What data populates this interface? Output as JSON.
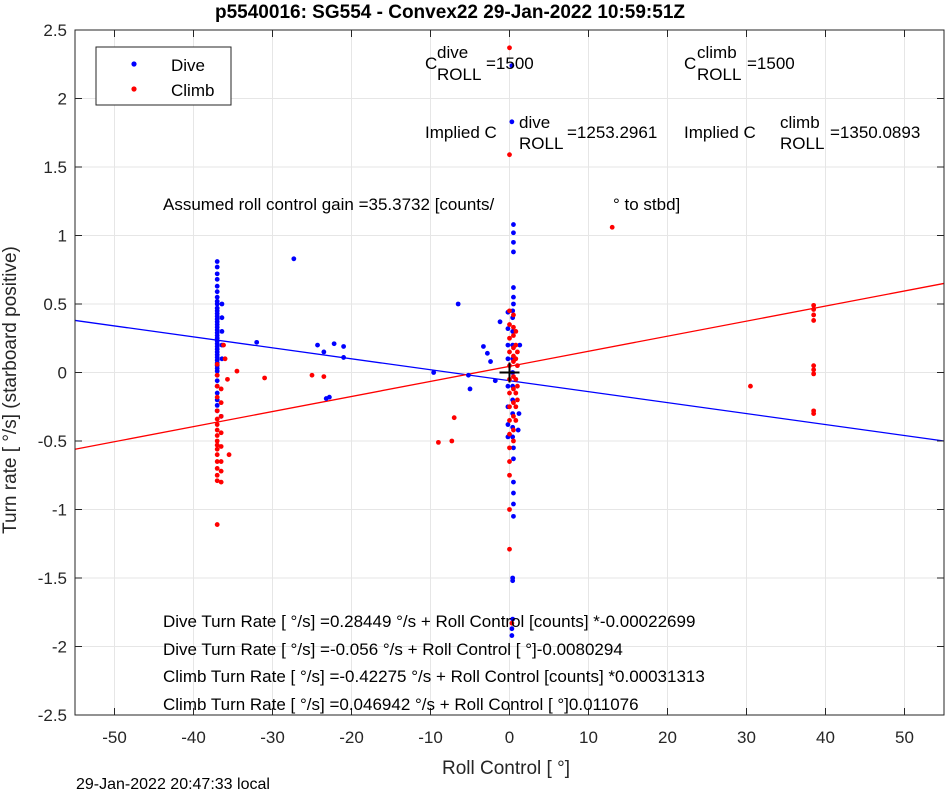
{
  "chart_data": {
    "type": "scatter",
    "title": "p5540016: SG554 - Convex22 29-Jan-2022 10:59:51Z",
    "xlabel": "Roll Control [   °]",
    "ylabel": "Turn rate [   °/s] (starboard positive)",
    "xlim": [
      -55,
      55
    ],
    "ylim": [
      -2.5,
      2.5
    ],
    "x_ticks": [
      -50,
      -40,
      -30,
      -20,
      -10,
      0,
      10,
      20,
      30,
      40,
      50
    ],
    "y_ticks": [
      -2.5,
      -2,
      -1.5,
      -1,
      -0.5,
      0,
      0.5,
      1,
      1.5,
      2,
      2.5
    ],
    "x_tick_labels": [
      "-50",
      "-40",
      "-30",
      "-20",
      "-10",
      "0",
      "10",
      "20",
      "30",
      "40",
      "50"
    ],
    "y_tick_labels": [
      "-2.5",
      "-2",
      "-1.5",
      "-1",
      "-0.5",
      "0",
      "0.5",
      "1",
      "1.5",
      "2",
      "2.5"
    ],
    "grid": true,
    "legend_position": "top-left",
    "series": [
      {
        "name": "Dive",
        "color": "#0000ff",
        "points": [
          [
            -37,
            0.81
          ],
          [
            -37,
            0.77
          ],
          [
            -37,
            0.72
          ],
          [
            -37,
            0.68
          ],
          [
            -37,
            0.63
          ],
          [
            -37,
            0.59
          ],
          [
            -37,
            0.55
          ],
          [
            -37,
            0.52
          ],
          [
            -37,
            0.5
          ],
          [
            -37,
            0.47
          ],
          [
            -37,
            0.45
          ],
          [
            -37,
            0.43
          ],
          [
            -37,
            0.41
          ],
          [
            -37,
            0.39
          ],
          [
            -37,
            0.37
          ],
          [
            -37,
            0.35
          ],
          [
            -37,
            0.33
          ],
          [
            -37,
            0.31
          ],
          [
            -37,
            0.29
          ],
          [
            -37,
            0.27
          ],
          [
            -37,
            0.25
          ],
          [
            -37,
            0.23
          ],
          [
            -37,
            0.21
          ],
          [
            -37,
            0.19
          ],
          [
            -37,
            0.17
          ],
          [
            -37,
            0.15
          ],
          [
            -37,
            0.13
          ],
          [
            -37,
            0.11
          ],
          [
            -37,
            0.09
          ],
          [
            -37,
            0.07
          ],
          [
            -37,
            0.05
          ],
          [
            -37,
            0.03
          ],
          [
            -37,
            0.01
          ],
          [
            -37,
            -0.02
          ],
          [
            -37,
            -0.06
          ],
          [
            -37,
            -0.1
          ],
          [
            -37,
            -0.15
          ],
          [
            -37,
            -0.2
          ],
          [
            -37,
            -0.24
          ],
          [
            -37,
            -0.28
          ],
          [
            -36.4,
            0.5
          ],
          [
            -36.4,
            0.4
          ],
          [
            -36.4,
            0.3
          ],
          [
            -36.4,
            0.2
          ],
          [
            -36.4,
            0.1
          ],
          [
            -36.5,
            -0.32
          ],
          [
            -32,
            0.22
          ],
          [
            -27.3,
            0.83
          ],
          [
            -24.3,
            0.2
          ],
          [
            -23.5,
            0.15
          ],
          [
            -23.2,
            -0.19
          ],
          [
            -22.8,
            -0.18
          ],
          [
            -22.2,
            0.21
          ],
          [
            -21,
            0.19
          ],
          [
            -21,
            0.11
          ],
          [
            -9.6,
            0.0
          ],
          [
            -6.5,
            0.5
          ],
          [
            -5.2,
            -0.02
          ],
          [
            -5,
            -0.12
          ],
          [
            -3.3,
            0.19
          ],
          [
            -2.8,
            0.14
          ],
          [
            -2.4,
            0.08
          ],
          [
            -1.8,
            -0.06
          ],
          [
            -1.2,
            0.37
          ],
          [
            0.3,
            2.24
          ],
          [
            0.3,
            1.83
          ],
          [
            0.5,
            1.08
          ],
          [
            0.5,
            1.02
          ],
          [
            0.5,
            0.95
          ],
          [
            0.5,
            0.88
          ],
          [
            0.5,
            0.62
          ],
          [
            0.5,
            0.55
          ],
          [
            0.5,
            0.5
          ],
          [
            0.4,
            0.45
          ],
          [
            0.4,
            0.4
          ],
          [
            0.4,
            0.3
          ],
          [
            0.4,
            0.2
          ],
          [
            0.4,
            0.1
          ],
          [
            0.4,
            0.0
          ],
          [
            0.4,
            -0.1
          ],
          [
            0.4,
            -0.2
          ],
          [
            0.4,
            -0.3
          ],
          [
            0.4,
            -0.4
          ],
          [
            0.4,
            -0.47
          ],
          [
            0.5,
            -0.55
          ],
          [
            0.5,
            -0.63
          ],
          [
            0.5,
            -0.8
          ],
          [
            0.5,
            -0.88
          ],
          [
            0.5,
            -0.96
          ],
          [
            0.5,
            -1.05
          ],
          [
            0.4,
            -1.5
          ],
          [
            0.4,
            -1.52
          ],
          [
            0.4,
            -1.8
          ],
          [
            0.3,
            -1.87
          ],
          [
            0.3,
            -1.92
          ],
          [
            -0.2,
            0.44
          ],
          [
            -0.2,
            0.32
          ],
          [
            -0.2,
            0.2
          ],
          [
            -0.2,
            0.1
          ],
          [
            -0.2,
            -0.1
          ],
          [
            -0.2,
            -0.25
          ],
          [
            -0.2,
            -0.38
          ],
          [
            -0.2,
            -0.47
          ],
          [
            1.3,
            0.2
          ],
          [
            1.2,
            -0.3
          ],
          [
            1.1,
            -0.42
          ]
        ]
      },
      {
        "name": "Climb",
        "color": "#ff0000",
        "points": [
          [
            -37,
            0.06
          ],
          [
            -37,
            -0.02
          ],
          [
            -37,
            -0.1
          ],
          [
            -37,
            -0.18
          ],
          [
            -37,
            -0.28
          ],
          [
            -37,
            -0.34
          ],
          [
            -37,
            -0.38
          ],
          [
            -37,
            -0.42
          ],
          [
            -37,
            -0.46
          ],
          [
            -37,
            -0.5
          ],
          [
            -37,
            -0.53
          ],
          [
            -37,
            -0.56
          ],
          [
            -37,
            -0.6
          ],
          [
            -37,
            -0.65
          ],
          [
            -37,
            -0.7
          ],
          [
            -37,
            -0.75
          ],
          [
            -37,
            -0.79
          ],
          [
            -37,
            -1.11
          ],
          [
            -36.5,
            -0.12
          ],
          [
            -36.5,
            -0.22
          ],
          [
            -36.5,
            -0.32
          ],
          [
            -36.5,
            -0.44
          ],
          [
            -36.5,
            -0.54
          ],
          [
            -36.5,
            -0.65
          ],
          [
            -36.5,
            -0.72
          ],
          [
            -36.5,
            -0.8
          ],
          [
            -36.2,
            0.2
          ],
          [
            -36.0,
            0.1
          ],
          [
            -35.7,
            -0.05
          ],
          [
            -35.5,
            -0.6
          ],
          [
            -34.5,
            0.01
          ],
          [
            -31,
            -0.04
          ],
          [
            -25,
            -0.02
          ],
          [
            -23.5,
            -0.03
          ],
          [
            -9,
            -0.51
          ],
          [
            -7.3,
            -0.5
          ],
          [
            -7.0,
            -0.33
          ],
          [
            0.0,
            2.37
          ],
          [
            0.0,
            1.59
          ],
          [
            0.0,
            -1.29
          ],
          [
            0.0,
            0.45
          ],
          [
            0.0,
            0.35
          ],
          [
            0.0,
            0.25
          ],
          [
            0.0,
            0.15
          ],
          [
            0.0,
            0.05
          ],
          [
            0.0,
            -0.05
          ],
          [
            0.0,
            -0.15
          ],
          [
            0.0,
            -0.25
          ],
          [
            0.0,
            -0.35
          ],
          [
            0.0,
            -0.45
          ],
          [
            0.0,
            -0.55
          ],
          [
            0.0,
            -0.65
          ],
          [
            0.0,
            -0.75
          ],
          [
            0.0,
            -1.0
          ],
          [
            0.5,
            0.42
          ],
          [
            0.5,
            0.33
          ],
          [
            0.5,
            0.27
          ],
          [
            0.5,
            0.18
          ],
          [
            0.5,
            0.12
          ],
          [
            0.5,
            0.08
          ],
          [
            0.5,
            -0.03
          ],
          [
            0.5,
            -0.12
          ],
          [
            0.5,
            -0.22
          ],
          [
            0.5,
            -0.32
          ],
          [
            0.5,
            -0.42
          ],
          [
            0.5,
            -0.5
          ],
          [
            0.8,
            0.3
          ],
          [
            0.8,
            0.2
          ],
          [
            0.8,
            0.1
          ],
          [
            0.8,
            -0.05
          ],
          [
            0.8,
            -0.15
          ],
          [
            0.8,
            -0.25
          ],
          [
            0.8,
            -0.35
          ],
          [
            1.0,
            0.15
          ],
          [
            1.0,
            0.05
          ],
          [
            1.0,
            -0.1
          ],
          [
            1.0,
            -0.2
          ],
          [
            0.3,
            -1.83
          ],
          [
            13,
            1.06
          ],
          [
            30.5,
            -0.1
          ],
          [
            38.5,
            0.49
          ],
          [
            38.5,
            0.46
          ],
          [
            38.5,
            0.42
          ],
          [
            38.5,
            0.38
          ],
          [
            38.5,
            0.05
          ],
          [
            38.5,
            0.02
          ],
          [
            38.5,
            -0.01
          ],
          [
            38.5,
            -0.28
          ],
          [
            38.5,
            -0.3
          ]
        ]
      }
    ],
    "fit_lines": [
      {
        "series": "Dive",
        "color": "#0000ff",
        "x": [
          -55,
          55
        ],
        "y": [
          0.38,
          -0.5
        ]
      },
      {
        "series": "Climb",
        "color": "#ff0000",
        "x": [
          -55,
          55
        ],
        "y": [
          -0.56,
          0.65
        ]
      }
    ],
    "marker": {
      "x": 0,
      "y": 0,
      "symbol": "+"
    },
    "annotations": {
      "c_dive_base": "C",
      "c_dive_sup": "dive",
      "c_dive_sub": "ROLL",
      "c_dive_value": "=1500",
      "c_climb_base": "C",
      "c_climb_sup": "climb",
      "c_climb_sub": "ROLL",
      "c_climb_value": "=1500",
      "implied_dive_base": "Implied C",
      "implied_dive_sup": "dive",
      "implied_dive_sub": "ROLL",
      "implied_dive_value": "=1253.2961",
      "implied_climb_base": "Implied C",
      "implied_climb_sup": "climb",
      "implied_climb_sub": "ROLL",
      "implied_climb_value": "=1350.0893",
      "gain_text": "Assumed roll control gain =35.3732 [counts/",
      "gain_suffix": "° to stbd]",
      "fit_lines_text": [
        "Dive Turn Rate [    °/s] =0.28449    °/s + Roll Control [counts] *-0.00022699",
        "Dive Turn Rate [    °/s] =-0.056    °/s + Roll Control [    °]-0.0080294",
        "Climb Turn Rate [    °/s] =-0.42275    °/s + Roll Control [counts] *0.00031313",
        "Climb Turn Rate [    °/s] =0.046942    °/s + Roll Control [    °]0.011076"
      ]
    },
    "footer": "29-Jan-2022 20:47:33 local"
  }
}
